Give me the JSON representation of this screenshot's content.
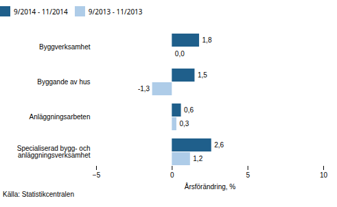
{
  "chart_data": {
    "type": "bar",
    "orientation": "horizontal",
    "categories": [
      "Byggverksamhet",
      "Byggande av hus",
      "Anläggningsarbeten",
      "Specialiserad bygg- och\nanläggningsverksamhet"
    ],
    "series": [
      {
        "name": "9/2014 - 11/2014",
        "color": "#1F5F8B",
        "values": [
          1.8,
          1.5,
          0.6,
          2.6
        ],
        "value_labels": [
          "1,8",
          "1,5",
          "0,6",
          "2,6"
        ]
      },
      {
        "name": "9/2013 - 11/2013",
        "color": "#AECCE8",
        "values": [
          0.0,
          -1.3,
          0.3,
          1.2
        ],
        "value_labels": [
          "0,0",
          "-1,3",
          "0,3",
          "1,2"
        ]
      }
    ],
    "xlabel": "Årsförändring, %",
    "xlim": [
      -5,
      10
    ],
    "xticks": [
      -5,
      0,
      5,
      10
    ],
    "caption": "Källa: Statistikcentralen",
    "data_labels": true,
    "legend": "upper right",
    "grid": false
  }
}
